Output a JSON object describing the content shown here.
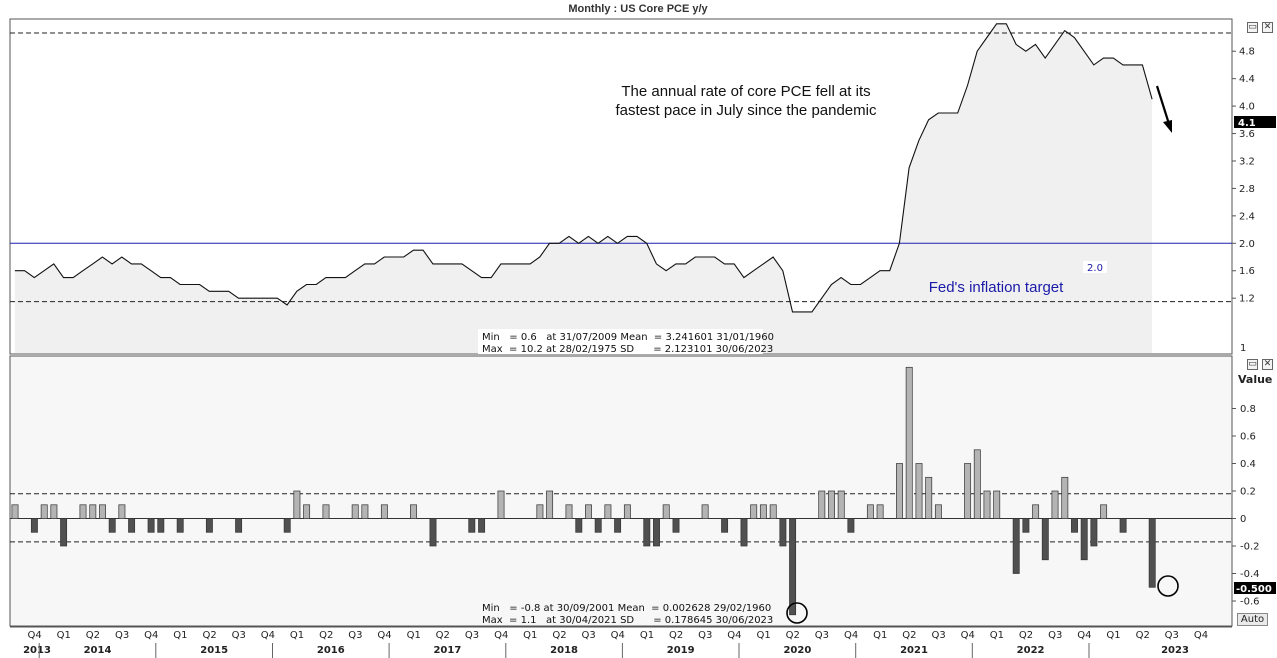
{
  "window": {
    "title": "Monthly : US Core PCE y/y"
  },
  "upper_panel": {
    "last_value_badge": "4.1",
    "annotation": [
      "The annual rate of core PCE fell at its",
      "fastest pace in July since the pandemic"
    ],
    "target_label": "Fed's inflation target",
    "target_value_label": "2.0",
    "stats": [
      "Min   = 0.6   at 31/07/2009 Mean  = 3.241601 31/01/1960",
      "Max  = 10.2 at 28/02/1975 SD      = 2.123101 30/06/2023"
    ],
    "axis_bottom_label": "1"
  },
  "lower_panel": {
    "value_axis_label": "Value",
    "last_value_badge": "-0.500",
    "stats": [
      "Min   = -0.8 at 30/09/2001 Mean  = 0.002628 29/02/1960",
      "Max  = 1.1   at 30/04/2021 SD      = 0.178645 30/06/2023"
    ],
    "auto_button": "Auto"
  },
  "x_axis": {
    "quarters": [
      "Q4",
      "Q1",
      "Q2",
      "Q3",
      "Q4",
      "Q1",
      "Q2",
      "Q3",
      "Q4",
      "Q1",
      "Q2",
      "Q3",
      "Q4",
      "Q1",
      "Q2",
      "Q3",
      "Q4",
      "Q1",
      "Q2",
      "Q3",
      "Q4",
      "Q1",
      "Q2",
      "Q3",
      "Q4",
      "Q1",
      "Q2",
      "Q3",
      "Q4",
      "Q1",
      "Q2",
      "Q3",
      "Q4",
      "Q1",
      "Q2",
      "Q3",
      "Q4",
      "Q1",
      "Q2",
      "Q3",
      "Q4"
    ],
    "years": [
      "2013",
      "2014",
      "2015",
      "2016",
      "2017",
      "2018",
      "2019",
      "2020",
      "2021",
      "2022",
      "2023"
    ]
  },
  "chart_data": [
    {
      "type": "area",
      "title": "Monthly : US Core PCE y/y",
      "x_start": "2013-10",
      "x_end": "2023-07",
      "frequency": "monthly",
      "ylim": [
        1.0,
        5.0
      ],
      "yticks": [
        1.2,
        1.6,
        2.0,
        2.4,
        2.8,
        3.2,
        3.6,
        4.0,
        4.4,
        4.8
      ],
      "hlines": {
        "target": 2.0,
        "upper_dashed": 5.0,
        "lower_dashed": 1.15
      },
      "grid": false,
      "series": [
        {
          "values": [
            1.6,
            1.6,
            1.5,
            1.6,
            1.7,
            1.5,
            1.5,
            1.6,
            1.7,
            1.8,
            1.7,
            1.8,
            1.7,
            1.7,
            1.6,
            1.5,
            1.5,
            1.4,
            1.4,
            1.4,
            1.3,
            1.3,
            1.3,
            1.2,
            1.2,
            1.2,
            1.2,
            1.2,
            1.1,
            1.3,
            1.4,
            1.4,
            1.5,
            1.5,
            1.5,
            1.6,
            1.7,
            1.7,
            1.8,
            1.8,
            1.8,
            1.9,
            1.9,
            1.7,
            1.7,
            1.7,
            1.7,
            1.6,
            1.5,
            1.5,
            1.7,
            1.7,
            1.7,
            1.7,
            1.8,
            2.0,
            2.0,
            2.1,
            2.0,
            2.1,
            2.0,
            2.1,
            2.0,
            2.1,
            2.1,
            2.0,
            1.7,
            1.6,
            1.7,
            1.7,
            1.8,
            1.8,
            1.8,
            1.7,
            1.7,
            1.5,
            1.6,
            1.7,
            1.8,
            1.6,
            1.0,
            1.0,
            1.0,
            1.2,
            1.4,
            1.5,
            1.4,
            1.4,
            1.5,
            1.6,
            1.6,
            2.0,
            3.1,
            3.5,
            3.8,
            3.9,
            3.9,
            3.9,
            4.3,
            4.8,
            5.0,
            5.2,
            5.2,
            4.9,
            4.8,
            4.9,
            4.7,
            4.9,
            5.1,
            5.0,
            4.8,
            4.6,
            4.7,
            4.7,
            4.6,
            4.6,
            4.6,
            4.1
          ]
        }
      ]
    },
    {
      "type": "bar",
      "title": "",
      "x_start": "2013-10",
      "frequency": "monthly",
      "ylim": [
        -0.8,
        1.1
      ],
      "yticks": [
        -0.6,
        -0.4,
        -0.2,
        0,
        0.2,
        0.4,
        0.6,
        0.8
      ],
      "hlines": {
        "upper_dashed": 0.18,
        "lower_dashed": -0.17
      },
      "grid": false,
      "series": [
        {
          "values": [
            0.1,
            0.0,
            -0.1,
            0.1,
            0.1,
            -0.2,
            0.0,
            0.1,
            0.1,
            0.1,
            -0.1,
            0.1,
            -0.1,
            0.0,
            -0.1,
            -0.1,
            0.0,
            -0.1,
            0.0,
            0.0,
            -0.1,
            0.0,
            0.0,
            -0.1,
            0.0,
            0.0,
            0.0,
            0.0,
            -0.1,
            0.2,
            0.1,
            0.0,
            0.1,
            0.0,
            0.0,
            0.1,
            0.1,
            0.0,
            0.1,
            0.0,
            0.0,
            0.1,
            0.0,
            -0.2,
            0.0,
            0.0,
            0.0,
            -0.1,
            -0.1,
            0.0,
            0.2,
            0.0,
            0.0,
            0.0,
            0.1,
            0.2,
            0.0,
            0.1,
            -0.1,
            0.1,
            -0.1,
            0.1,
            -0.1,
            0.1,
            0.0,
            -0.2,
            -0.2,
            0.1,
            -0.1,
            0.0,
            0.0,
            0.1,
            0.0,
            -0.1,
            0.0,
            -0.2,
            0.1,
            0.1,
            0.1,
            -0.2,
            -0.7,
            0.0,
            0.0,
            0.2,
            0.2,
            0.2,
            -0.1,
            0.0,
            0.1,
            0.1,
            0.0,
            0.4,
            1.1,
            0.4,
            0.3,
            0.1,
            0.0,
            0.0,
            0.4,
            0.5,
            0.2,
            0.2,
            0.0,
            -0.4,
            -0.1,
            0.1,
            -0.3,
            0.2,
            0.3,
            -0.1,
            -0.3,
            -0.2,
            0.1,
            0.0,
            -0.1,
            0.0,
            0.0,
            -0.5
          ]
        }
      ]
    }
  ]
}
